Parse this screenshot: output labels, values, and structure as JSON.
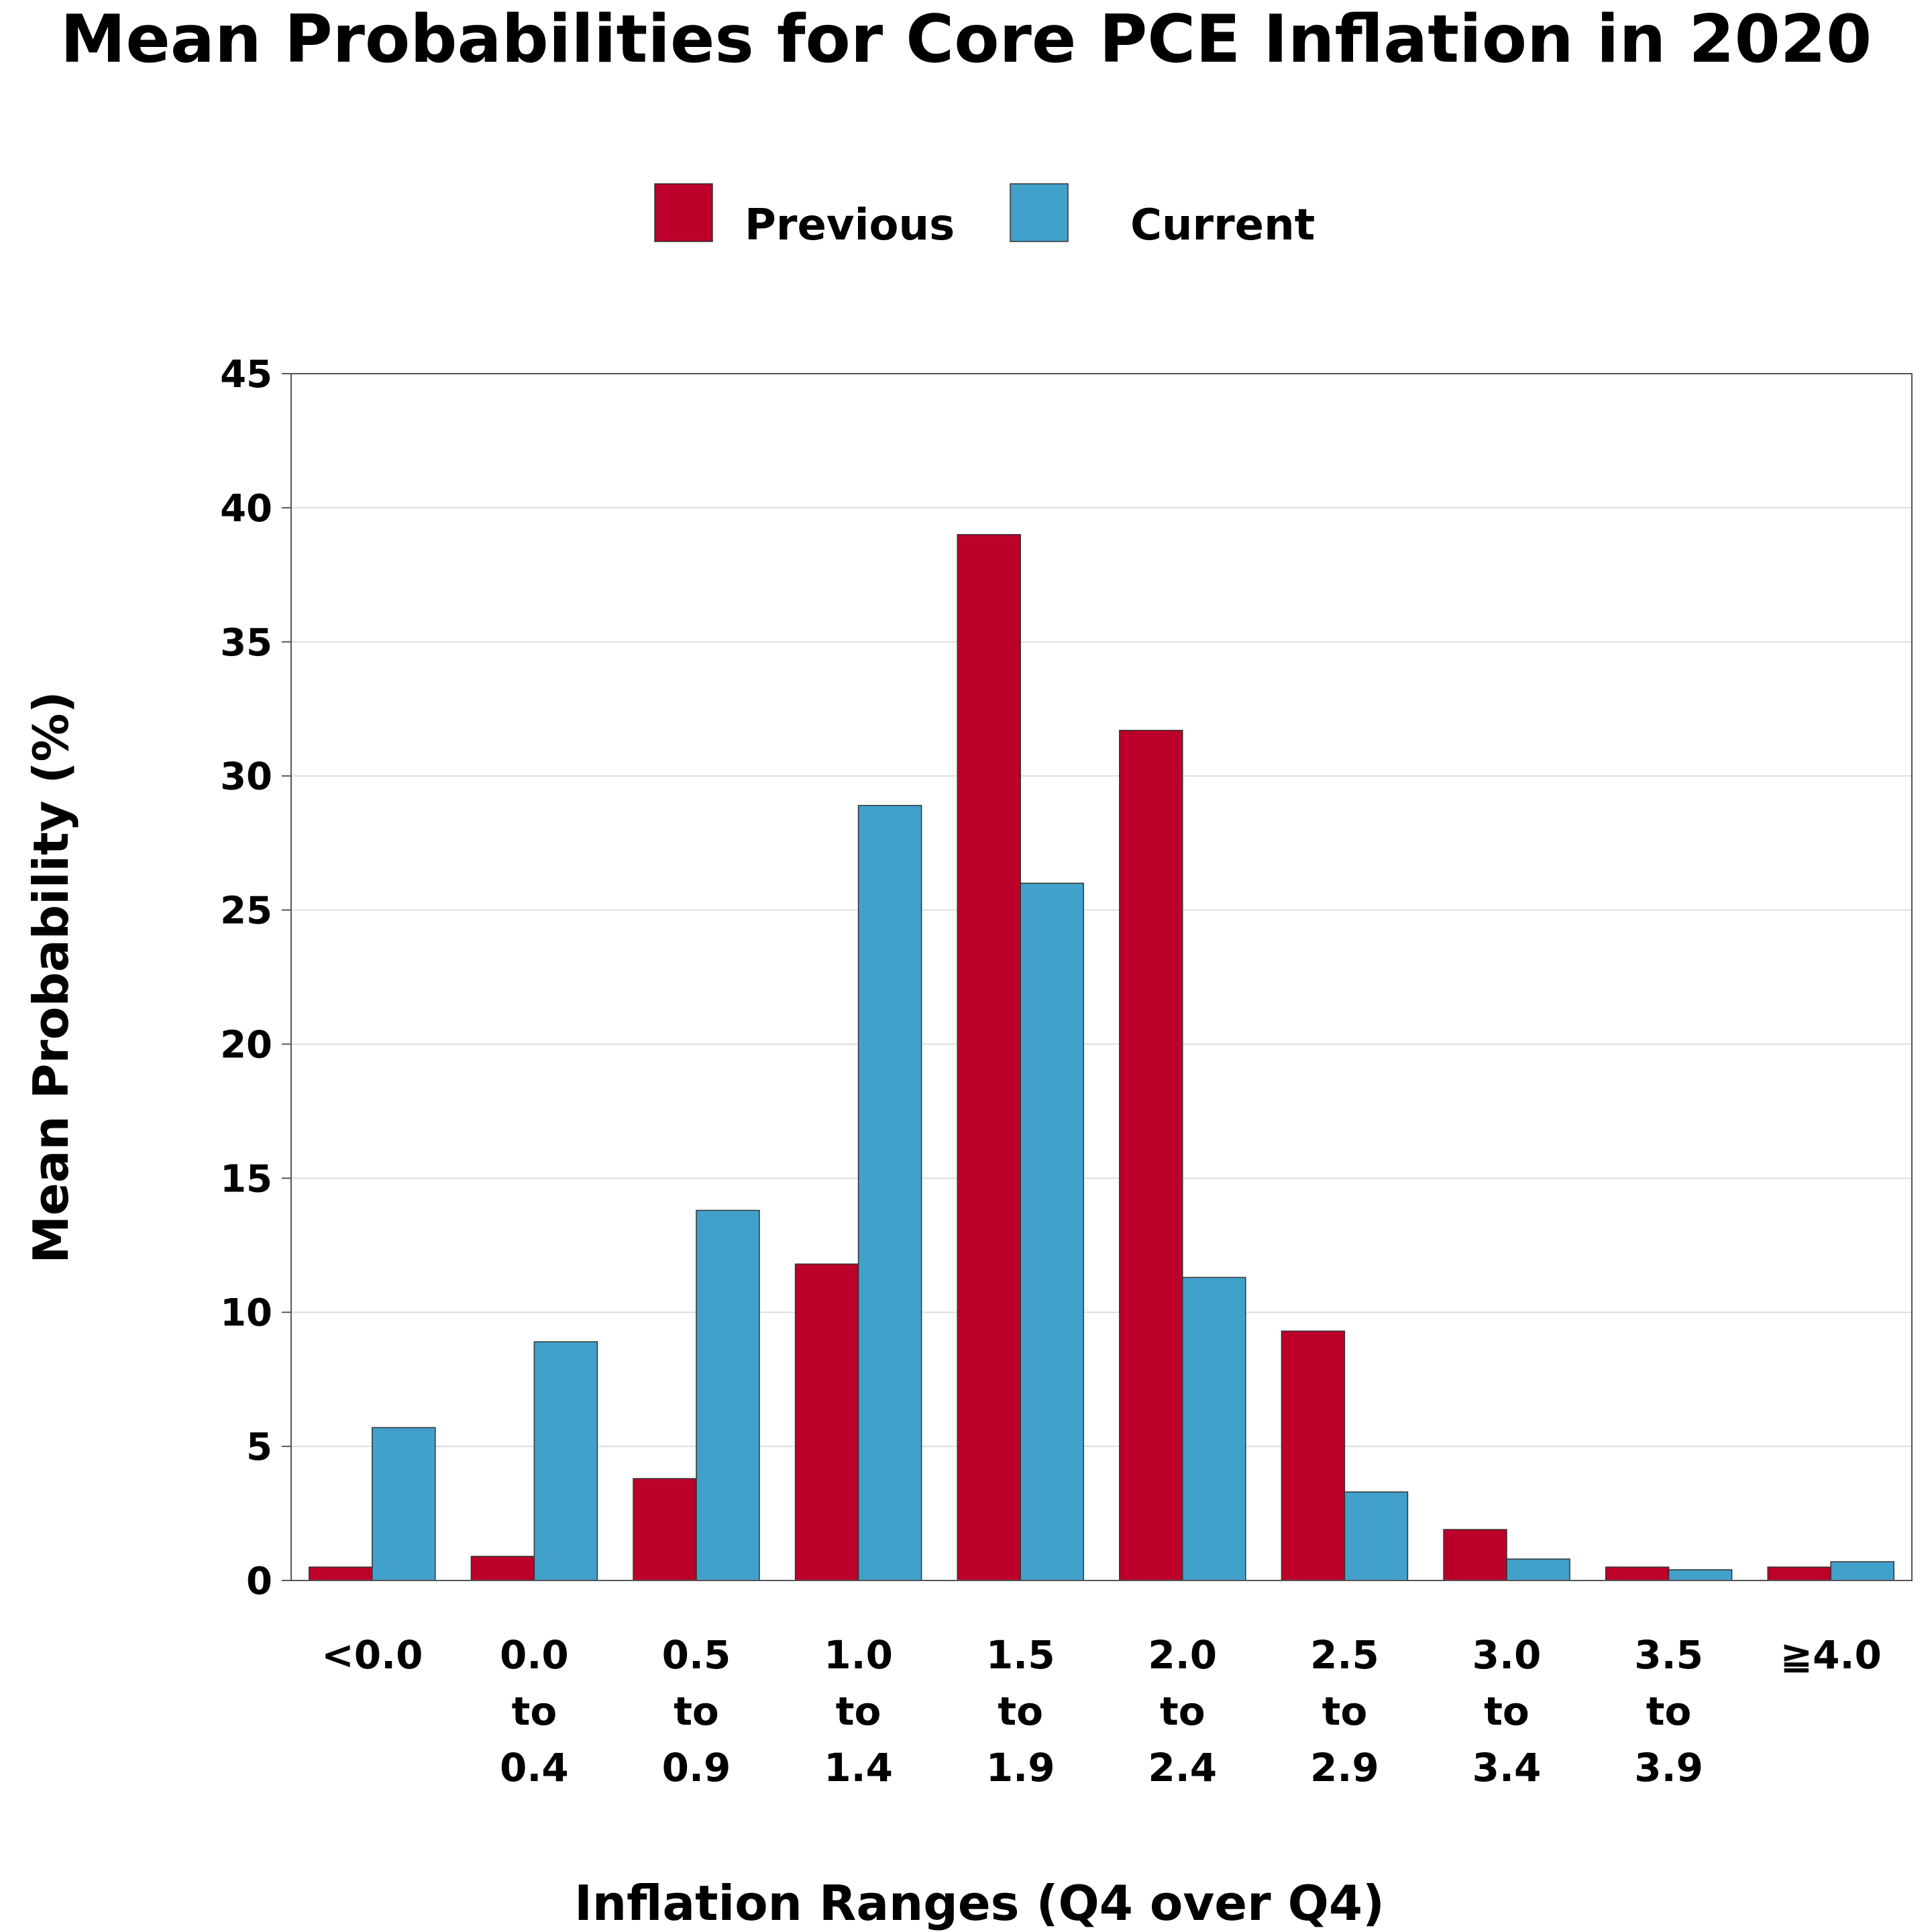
{
  "chart_data": {
    "type": "bar",
    "title": "Mean Probabilities for Core PCE Inflation in 2020",
    "xlabel": "Inflation Ranges (Q4 over Q4)",
    "ylabel": "Mean Probability (%)",
    "ylim": [
      0,
      45
    ],
    "yticks": [
      "0",
      "5",
      "10",
      "15",
      "20",
      "25",
      "30",
      "35",
      "40",
      "45"
    ],
    "categories": [
      [
        "<0.0"
      ],
      [
        "0.0",
        "to",
        "0.4"
      ],
      [
        "0.5",
        "to",
        "0.9"
      ],
      [
        "1.0",
        "to",
        "1.4"
      ],
      [
        "1.5",
        "to",
        "1.9"
      ],
      [
        "2.0",
        "to",
        "2.4"
      ],
      [
        "2.5",
        "to",
        "2.9"
      ],
      [
        "3.0",
        "to",
        "3.4"
      ],
      [
        "3.5",
        "to",
        "3.9"
      ],
      [
        "≧4.0"
      ]
    ],
    "series": [
      {
        "name": "Previous",
        "color": "#bc0029",
        "values": [
          0.5,
          0.9,
          3.8,
          11.8,
          39.0,
          31.7,
          9.3,
          1.9,
          0.5,
          0.5
        ]
      },
      {
        "name": "Current",
        "color": "#42a1cb",
        "values": [
          5.7,
          8.9,
          13.8,
          28.9,
          26.0,
          11.3,
          3.3,
          0.8,
          0.4,
          0.7
        ]
      }
    ],
    "grid": true,
    "legend_position": "top-center"
  }
}
